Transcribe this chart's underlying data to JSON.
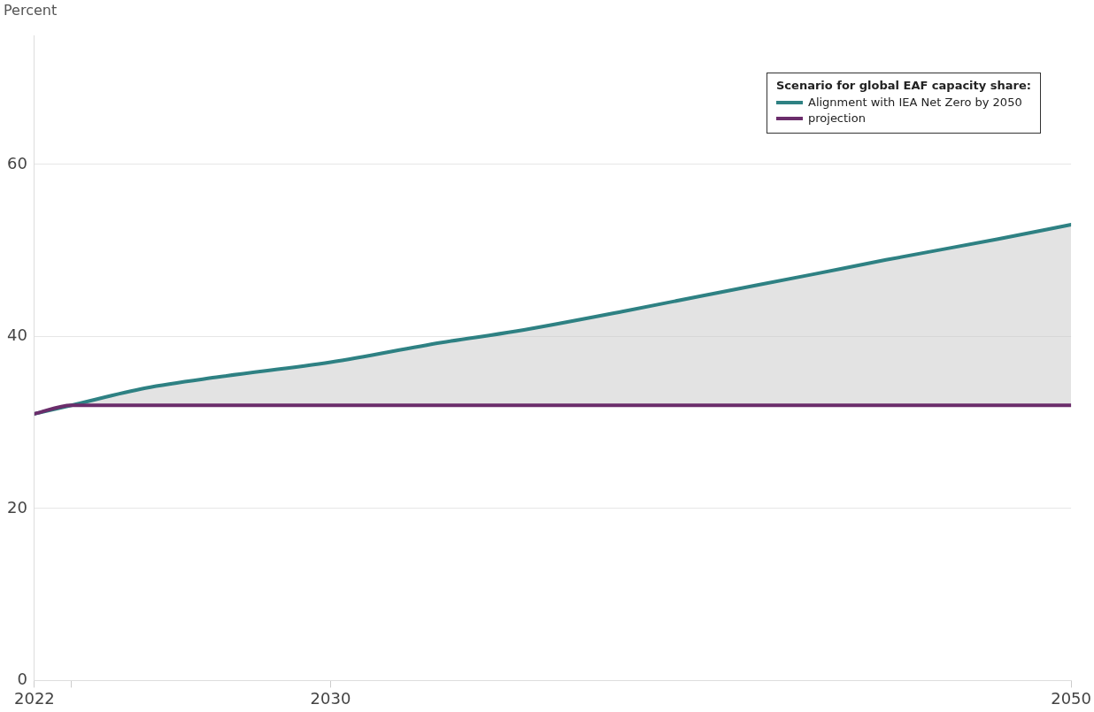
{
  "chart_data": {
    "type": "line",
    "ylabel": "Percent",
    "legend_title": "Scenario for global EAF capacity share:",
    "x": [
      2022,
      2023,
      2025,
      2027,
      2030,
      2033,
      2035,
      2038,
      2040,
      2043,
      2045,
      2048,
      2050
    ],
    "series": [
      {
        "name": "Alignment with IEA Net Zero by 2050",
        "color": "#2e8183",
        "values": [
          31,
          32,
          34,
          35.3,
          37,
          39.3,
          40.6,
          43,
          44.7,
          47.2,
          48.9,
          51.3,
          53
        ],
        "lower": [
          31,
          32,
          32,
          32,
          32,
          32,
          32,
          32,
          32,
          32,
          32,
          32,
          32
        ],
        "upper": [
          31,
          32,
          34,
          35.3,
          37,
          39.3,
          40.6,
          43,
          44.7,
          47.2,
          48.9,
          51.3,
          53
        ]
      },
      {
        "name": "projection",
        "color": "#6b2d6b",
        "values": [
          31,
          32,
          32,
          32,
          32,
          32,
          32,
          32,
          32,
          32,
          32,
          32,
          32
        ]
      }
    ],
    "xlim": [
      2022,
      2050
    ],
    "xticks": [
      2022,
      {
        "value": 2023,
        "label": null
      },
      2030,
      2050
    ],
    "ylim": [
      0,
      75
    ],
    "yticks": [
      0,
      20,
      40,
      60
    ],
    "grid": "y",
    "legend": "top right"
  }
}
